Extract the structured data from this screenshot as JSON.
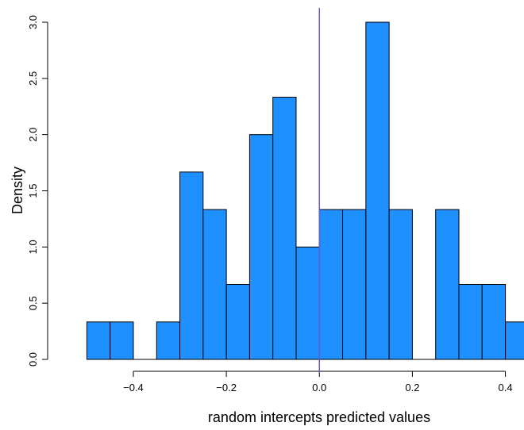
{
  "chart_data": {
    "type": "histogram",
    "xlabel": "random intercepts predicted values",
    "ylabel": "Density",
    "bins": [
      -0.5,
      -0.45,
      -0.4,
      -0.35,
      -0.3,
      -0.25,
      -0.2,
      -0.15,
      -0.1,
      -0.05,
      0,
      0.05,
      0.1,
      0.15,
      0.2,
      0.25,
      0.3,
      0.35,
      0.4,
      0.45
    ],
    "values": [
      0.333,
      0.333,
      0,
      0.333,
      1.667,
      1.333,
      0.667,
      2.0,
      2.333,
      1.0,
      1.333,
      1.333,
      3.0,
      1.333,
      0,
      1.333,
      0.667,
      0.667,
      0.333
    ],
    "color": "#1e90ff",
    "xlim": [
      -0.5,
      0.44
    ],
    "ylim": [
      0,
      3.0
    ],
    "xticks": [
      {
        "value": -0.4,
        "label": "−0.4"
      },
      {
        "value": -0.2,
        "label": "−0.2"
      },
      {
        "value": 0,
        "label": "0.0"
      },
      0.2,
      0.4
    ],
    "yticks": [
      {
        "value": 0,
        "label": "0.0"
      },
      0.5,
      {
        "value": 1,
        "label": "1.0"
      },
      1.5,
      {
        "value": 2,
        "label": "2.0"
      },
      2.5,
      {
        "value": 3,
        "label": "3.0"
      }
    ],
    "vline": 0,
    "vline_color": "#6a5acd"
  }
}
